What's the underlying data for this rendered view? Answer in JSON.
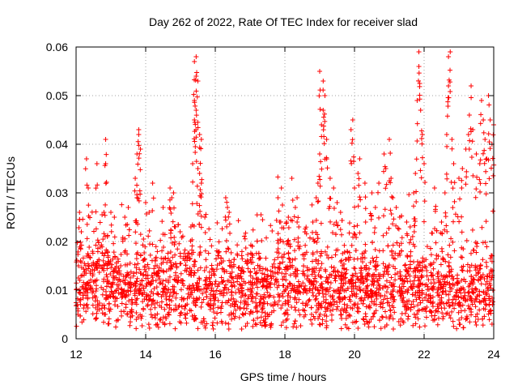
{
  "chart_data": {
    "type": "scatter",
    "title": "Day 262 of 2022, Rate Of TEC Index for receiver slad",
    "xlabel": "GPS time / hours",
    "ylabel": "ROTI / TECUs",
    "xlim": [
      12,
      24
    ],
    "ylim": [
      0,
      0.06
    ],
    "xticks": [
      12,
      14,
      16,
      18,
      20,
      22,
      24
    ],
    "xtick_labels": [
      "12",
      "14",
      "16",
      "18",
      "20",
      "22",
      "24"
    ],
    "yticks": [
      0,
      0.01,
      0.02,
      0.03,
      0.04,
      0.05,
      0.06
    ],
    "ytick_labels": [
      "0",
      "0.01",
      "0.02",
      "0.03",
      "0.04",
      "0.05",
      "0.06"
    ],
    "grid": true,
    "marker": "+",
    "color": "#ff0000",
    "series": [
      {
        "points": [
          [
            12.1,
            0.026
          ],
          [
            12.15,
            0.022
          ],
          [
            12.3,
            0.037
          ],
          [
            12.35,
            0.031
          ],
          [
            12.6,
            0.036
          ],
          [
            12.8,
            0.026
          ],
          [
            12.85,
            0.036
          ],
          [
            12.85,
            0.041
          ],
          [
            12.9,
            0.021
          ],
          [
            13.0,
            0.026
          ],
          [
            13.1,
            0.025
          ],
          [
            13.4,
            0.025
          ],
          [
            13.5,
            0.027
          ],
          [
            13.7,
            0.033
          ],
          [
            13.75,
            0.029
          ],
          [
            13.75,
            0.038
          ],
          [
            13.8,
            0.042
          ],
          [
            13.8,
            0.043
          ],
          [
            13.85,
            0.039
          ],
          [
            14.0,
            0.028
          ],
          [
            14.1,
            0.026
          ],
          [
            14.2,
            0.032
          ],
          [
            14.5,
            0.027
          ],
          [
            14.7,
            0.031
          ],
          [
            14.75,
            0.029
          ],
          [
            14.8,
            0.03
          ],
          [
            14.85,
            0.023
          ],
          [
            15.3,
            0.023
          ],
          [
            15.35,
            0.036
          ],
          [
            15.4,
            0.045
          ],
          [
            15.45,
            0.047
          ],
          [
            15.4,
            0.049
          ],
          [
            15.45,
            0.054
          ],
          [
            15.4,
            0.057
          ],
          [
            15.45,
            0.058
          ],
          [
            15.5,
            0.053
          ],
          [
            15.55,
            0.042
          ],
          [
            15.6,
            0.041
          ],
          [
            15.5,
            0.035
          ],
          [
            15.55,
            0.034
          ],
          [
            15.6,
            0.032
          ],
          [
            15.7,
            0.025
          ],
          [
            16.3,
            0.029
          ],
          [
            16.35,
            0.027
          ],
          [
            16.4,
            0.026
          ],
          [
            17.8,
            0.029
          ],
          [
            17.85,
            0.024
          ],
          [
            17.9,
            0.031
          ],
          [
            18.05,
            0.024
          ],
          [
            18.1,
            0.025
          ],
          [
            18.2,
            0.033
          ],
          [
            18.3,
            0.027
          ],
          [
            18.35,
            0.029
          ],
          [
            18.4,
            0.023
          ],
          [
            18.9,
            0.029
          ],
          [
            18.95,
            0.032
          ],
          [
            19.0,
            0.038
          ],
          [
            19.05,
            0.044
          ],
          [
            19.0,
            0.055
          ],
          [
            19.1,
            0.053
          ],
          [
            19.15,
            0.05
          ],
          [
            19.1,
            0.047
          ],
          [
            19.2,
            0.041
          ],
          [
            19.3,
            0.033
          ],
          [
            19.4,
            0.031
          ],
          [
            19.5,
            0.028
          ],
          [
            19.6,
            0.026
          ],
          [
            19.9,
            0.043
          ],
          [
            19.95,
            0.045
          ],
          [
            20.0,
            0.031
          ],
          [
            20.1,
            0.034
          ],
          [
            20.15,
            0.037
          ],
          [
            20.3,
            0.032
          ],
          [
            20.5,
            0.03
          ],
          [
            20.6,
            0.027
          ],
          [
            20.7,
            0.032
          ],
          [
            20.85,
            0.038
          ],
          [
            20.9,
            0.035
          ],
          [
            21.0,
            0.041
          ],
          [
            21.05,
            0.033
          ],
          [
            21.1,
            0.029
          ],
          [
            21.2,
            0.027
          ],
          [
            21.3,
            0.025
          ],
          [
            21.5,
            0.024
          ],
          [
            21.6,
            0.023
          ],
          [
            21.7,
            0.03
          ],
          [
            21.75,
            0.034
          ],
          [
            21.8,
            0.049
          ],
          [
            21.85,
            0.056
          ],
          [
            21.85,
            0.059
          ],
          [
            21.9,
            0.047
          ],
          [
            21.95,
            0.042
          ],
          [
            22.0,
            0.036
          ],
          [
            22.3,
            0.031
          ],
          [
            22.5,
            0.024
          ],
          [
            22.6,
            0.03
          ],
          [
            22.65,
            0.042
          ],
          [
            22.7,
            0.052
          ],
          [
            22.7,
            0.058
          ],
          [
            22.75,
            0.059
          ],
          [
            22.8,
            0.041
          ],
          [
            22.85,
            0.036
          ],
          [
            23.0,
            0.033
          ],
          [
            23.1,
            0.035
          ],
          [
            23.2,
            0.039
          ],
          [
            23.3,
            0.046
          ],
          [
            23.35,
            0.052
          ],
          [
            23.4,
            0.043
          ],
          [
            23.5,
            0.038
          ],
          [
            23.6,
            0.036
          ],
          [
            23.65,
            0.049
          ],
          [
            23.7,
            0.045
          ],
          [
            23.75,
            0.041
          ],
          [
            23.8,
            0.037
          ],
          [
            23.85,
            0.05
          ],
          [
            23.9,
            0.045
          ],
          [
            23.95,
            0.04
          ],
          [
            24.0,
            0.044
          ]
        ]
      }
    ],
    "background_noise": {
      "x_range": [
        12,
        24
      ],
      "baseline_center": 0.01,
      "spread": 0.004,
      "point_count": 2600
    }
  }
}
